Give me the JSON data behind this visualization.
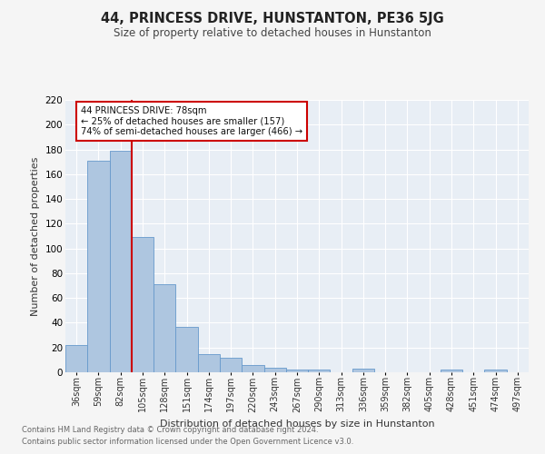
{
  "title": "44, PRINCESS DRIVE, HUNSTANTON, PE36 5JG",
  "subtitle": "Size of property relative to detached houses in Hunstanton",
  "xlabel": "Distribution of detached houses by size in Hunstanton",
  "ylabel": "Number of detached properties",
  "categories": [
    "36sqm",
    "59sqm",
    "82sqm",
    "105sqm",
    "128sqm",
    "151sqm",
    "174sqm",
    "197sqm",
    "220sqm",
    "243sqm",
    "267sqm",
    "290sqm",
    "313sqm",
    "336sqm",
    "359sqm",
    "382sqm",
    "405sqm",
    "428sqm",
    "451sqm",
    "474sqm",
    "497sqm"
  ],
  "values": [
    22,
    171,
    179,
    109,
    71,
    37,
    15,
    12,
    6,
    4,
    2,
    2,
    0,
    3,
    0,
    0,
    0,
    2,
    0,
    2,
    0
  ],
  "bar_color": "#aec6e0",
  "bar_edge_color": "#6699cc",
  "background_color": "#e8eef5",
  "grid_color": "#ffffff",
  "vline_color": "#cc0000",
  "vline_pos": 2.5,
  "annotation_title": "44 PRINCESS DRIVE: 78sqm",
  "annotation_line1": "← 25% of detached houses are smaller (157)",
  "annotation_line2": "74% of semi-detached houses are larger (466) →",
  "annotation_box_facecolor": "#ffffff",
  "annotation_box_edgecolor": "#cc0000",
  "ylim": [
    0,
    220
  ],
  "yticks": [
    0,
    20,
    40,
    60,
    80,
    100,
    120,
    140,
    160,
    180,
    200,
    220
  ],
  "footnote1": "Contains HM Land Registry data © Crown copyright and database right 2024.",
  "footnote2": "Contains public sector information licensed under the Open Government Licence v3.0."
}
